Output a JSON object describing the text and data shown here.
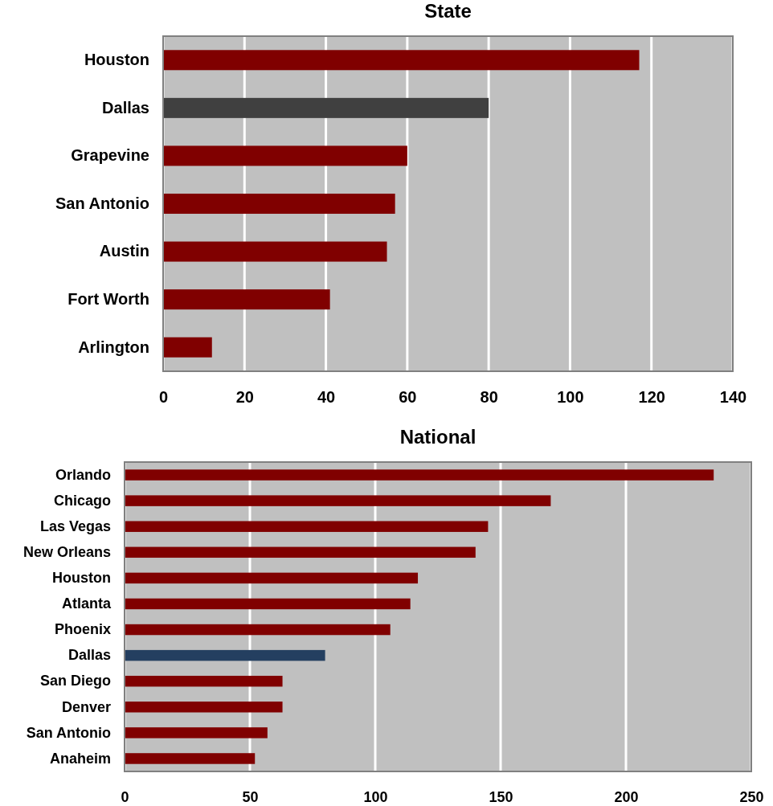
{
  "chart_data": [
    {
      "type": "bar",
      "orientation": "horizontal",
      "title": "State",
      "categories": [
        "Houston",
        "Dallas",
        "Grapevine",
        "San Antonio",
        "Austin",
        "Fort Worth",
        "Arlington"
      ],
      "values": [
        117,
        80,
        60,
        57,
        55,
        41,
        12
      ],
      "colors": [
        "#800000",
        "#404040",
        "#800000",
        "#800000",
        "#800000",
        "#800000",
        "#800000"
      ],
      "xlim": [
        0,
        140
      ],
      "xticks": [
        0,
        20,
        40,
        60,
        80,
        100,
        120,
        140
      ],
      "grid": "x"
    },
    {
      "type": "bar",
      "orientation": "horizontal",
      "title": "National",
      "categories": [
        "Orlando",
        "Chicago",
        "Las Vegas",
        "New Orleans",
        "Houston",
        "Atlanta",
        "Phoenix",
        "Dallas",
        "San Diego",
        "Denver",
        "San Antonio",
        "Anaheim"
      ],
      "values": [
        235,
        170,
        145,
        140,
        117,
        114,
        106,
        80,
        63,
        63,
        57,
        52
      ],
      "colors": [
        "#800000",
        "#800000",
        "#800000",
        "#800000",
        "#800000",
        "#800000",
        "#800000",
        "#243f60",
        "#800000",
        "#800000",
        "#800000",
        "#800000"
      ],
      "xlim": [
        0,
        250
      ],
      "xticks": [
        0,
        50,
        100,
        150,
        200,
        250
      ],
      "grid": "x"
    }
  ]
}
